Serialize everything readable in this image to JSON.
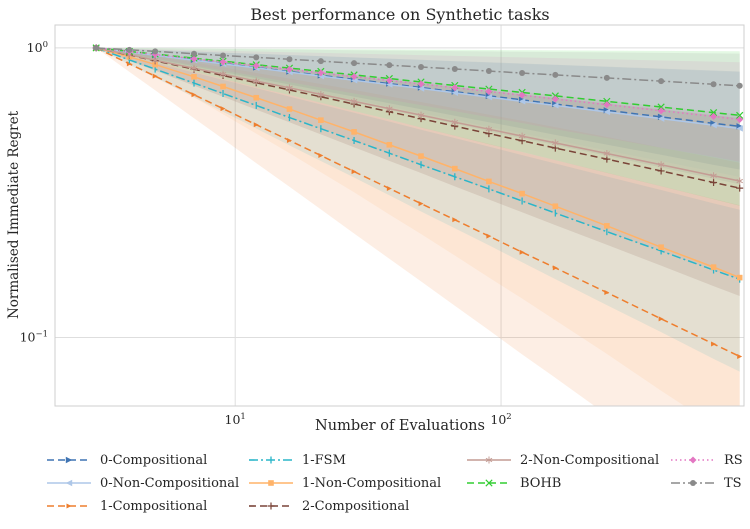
{
  "title": "Best performance on Synthetic tasks",
  "axes": {
    "xlabel": "Number of Evaluations",
    "ylabel": "Normalised Immediate Regret",
    "x_scale": "log",
    "y_scale": "log",
    "xlim": [
      2.1,
      820
    ],
    "ylim": [
      0.058,
      1.2
    ],
    "x_ticks": [
      {
        "value": 10,
        "base": "10",
        "exp": "1"
      },
      {
        "value": 100,
        "base": "10",
        "exp": "2"
      }
    ],
    "y_ticks": [
      {
        "value": 1,
        "base": "10",
        "exp": "0"
      },
      {
        "value": 0.1,
        "base": "10",
        "exp": "−1"
      }
    ],
    "grid_color": "#dedede",
    "spine_color": "#cfcfcf",
    "text_color": "#262626"
  },
  "chart_data": {
    "type": "line",
    "x": [
      3,
      4,
      5,
      7,
      9,
      12,
      16,
      21,
      28,
      38,
      50,
      67,
      90,
      120,
      160,
      250,
      400,
      630,
      790
    ],
    "series": [
      {
        "name": "0-Compositional",
        "color": "#3f74b3",
        "dash": "dashed",
        "marker": "triangle-right",
        "values": [
          1.0,
          0.968,
          0.944,
          0.91,
          0.884,
          0.856,
          0.829,
          0.804,
          0.779,
          0.753,
          0.73,
          0.706,
          0.683,
          0.662,
          0.64,
          0.609,
          0.578,
          0.549,
          0.536
        ],
        "band_pow": {
          "lower": 1.55,
          "upper": 0.3
        }
      },
      {
        "name": "0-Non-Compositional",
        "color": "#aec7e8",
        "dash": "solid",
        "marker": "triangle-left",
        "values": [
          1.0,
          0.967,
          0.943,
          0.907,
          0.881,
          0.853,
          0.825,
          0.799,
          0.773,
          0.747,
          0.724,
          0.7,
          0.676,
          0.654,
          0.633,
          0.601,
          0.57,
          0.541,
          0.527
        ],
        "band_pow": {
          "lower": 1.6,
          "upper": 0.3
        }
      },
      {
        "name": "1-Compositional",
        "color": "#ee7e2e",
        "dash": "dashed",
        "marker": "triangle-right-small",
        "values": [
          1.0,
          0.881,
          0.799,
          0.689,
          0.617,
          0.543,
          0.479,
          0.425,
          0.374,
          0.327,
          0.29,
          0.255,
          0.224,
          0.197,
          0.174,
          0.143,
          0.116,
          0.095,
          0.086
        ],
        "band_pow": {
          "lower": 1.5,
          "upper": 0.51
        }
      },
      {
        "name": "1-FSM",
        "color": "#2ab5c9",
        "dash": "dashdot",
        "marker": "tick",
        "values": [
          1.0,
          0.909,
          0.845,
          0.756,
          0.696,
          0.633,
          0.575,
          0.526,
          0.479,
          0.433,
          0.395,
          0.359,
          0.326,
          0.296,
          0.269,
          0.232,
          0.199,
          0.171,
          0.159
        ],
        "band_pow": {
          "lower": 1.4,
          "upper": 0.7
        }
      },
      {
        "name": "1-Non-Compositional",
        "color": "#ffb369",
        "dash": "solid",
        "marker": "square",
        "values": [
          1.0,
          0.932,
          0.876,
          0.795,
          0.736,
          0.673,
          0.615,
          0.563,
          0.513,
          0.463,
          0.423,
          0.383,
          0.346,
          0.314,
          0.284,
          0.243,
          0.205,
          0.175,
          0.161
        ],
        "band_pow": {
          "lower": 1.72,
          "upper": 0.5
        }
      },
      {
        "name": "2-Compositional",
        "color": "#7a4438",
        "dash": "dashed",
        "marker": "plus",
        "values": [
          1.0,
          0.944,
          0.903,
          0.844,
          0.803,
          0.758,
          0.716,
          0.678,
          0.64,
          0.602,
          0.57,
          0.537,
          0.506,
          0.478,
          0.451,
          0.413,
          0.376,
          0.343,
          0.328
        ],
        "band_pow": {
          "lower": 1.77,
          "upper": 0.5
        }
      },
      {
        "name": "2-Non-Compositional",
        "color": "#c49c94",
        "dash": "solid",
        "marker": "star",
        "values": [
          1.0,
          0.947,
          0.907,
          0.851,
          0.812,
          0.768,
          0.728,
          0.691,
          0.654,
          0.617,
          0.586,
          0.554,
          0.524,
          0.496,
          0.47,
          0.432,
          0.395,
          0.362,
          0.347
        ],
        "band_pow": {
          "lower": 1.74,
          "upper": 0.5
        }
      },
      {
        "name": "BOHB",
        "color": "#32cd32",
        "dash": "dashed",
        "marker": "x",
        "values": [
          1.0,
          0.973,
          0.952,
          0.922,
          0.9,
          0.875,
          0.852,
          0.83,
          0.807,
          0.784,
          0.763,
          0.742,
          0.721,
          0.702,
          0.683,
          0.654,
          0.625,
          0.598,
          0.585
        ],
        "band_pow": {
          "lower": 2.34,
          "upper": 0.05
        }
      },
      {
        "name": "RS",
        "color": "#e377c2",
        "dash": "dotted",
        "marker": "diamond",
        "values": [
          1.0,
          0.971,
          0.949,
          0.917,
          0.894,
          0.868,
          0.843,
          0.82,
          0.796,
          0.772,
          0.751,
          0.729,
          0.707,
          0.687,
          0.666,
          0.637,
          0.607,
          0.58,
          0.566
        ],
        "band_pow": {
          "lower": 1.59,
          "upper": 0.2
        }
      },
      {
        "name": "TS",
        "color": "#8a8a8a",
        "dash": "dashdot",
        "marker": "circle",
        "values": [
          1.0,
          0.985,
          0.973,
          0.955,
          0.942,
          0.928,
          0.914,
          0.9,
          0.886,
          0.872,
          0.859,
          0.846,
          0.832,
          0.819,
          0.807,
          0.788,
          0.768,
          0.749,
          0.74
        ],
        "band_pow": {
          "lower": 3.6,
          "upper": 0.15
        }
      }
    ],
    "legend_columns": [
      [
        "0-Compositional",
        "0-Non-Compositional",
        "1-Compositional"
      ],
      [
        "1-FSM",
        "1-Non-Compositional",
        "2-Compositional"
      ],
      [
        "2-Non-Compositional",
        "BOHB"
      ],
      [
        "RS",
        "TS"
      ]
    ]
  }
}
